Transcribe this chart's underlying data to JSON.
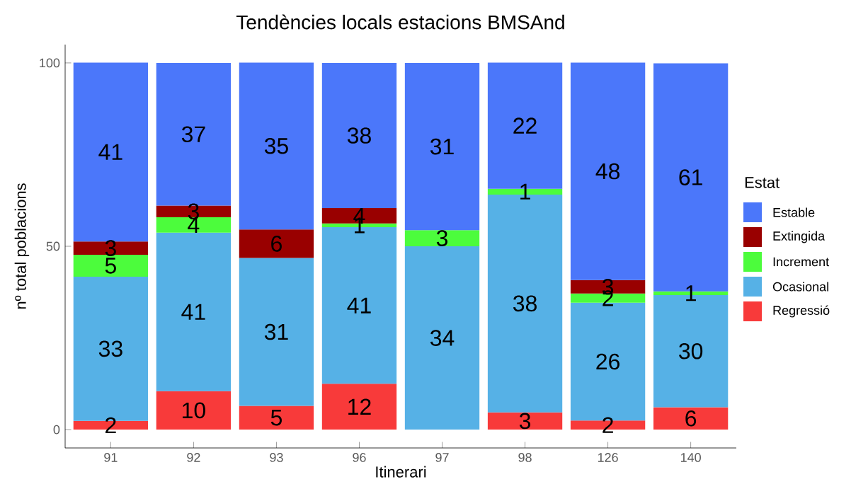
{
  "chart_data": {
    "type": "bar",
    "stacked": true,
    "title": "Tendències locals estacions BMSAnd",
    "xlabel": "Itinerari",
    "ylabel": "nº total poblacions",
    "legend_title": "Estat",
    "legend": "right",
    "grid": false,
    "categories": [
      "91",
      "92",
      "93",
      "96",
      "97",
      "98",
      "126",
      "140"
    ],
    "ylim": [
      -5,
      105
    ],
    "yticks": [
      0,
      50,
      100
    ],
    "series": [
      {
        "name": "Regressió",
        "color": "#f83a3a",
        "values": [
          2.4,
          10.5,
          6.5,
          12.5,
          null,
          4.7,
          2.5,
          6.1
        ]
      },
      {
        "name": "Ocasional",
        "color": "#56b1e6",
        "values": [
          39.3,
          43.2,
          40.3,
          42.7,
          50.0,
          59.4,
          32.1,
          30.6
        ]
      },
      {
        "name": "Increment",
        "color": "#4cfc3c",
        "values": [
          6.0,
          4.2,
          null,
          1.0,
          4.4,
          1.6,
          2.5,
          1.0
        ]
      },
      {
        "name": "Extingida",
        "color": "#990000",
        "values": [
          3.6,
          3.2,
          7.8,
          4.2,
          null,
          null,
          3.7,
          null
        ]
      },
      {
        "name": "Estable",
        "color": "#4b77fa",
        "values": [
          48.8,
          38.9,
          45.5,
          39.6,
          45.6,
          34.4,
          59.3,
          62.2
        ]
      }
    ],
    "annotations": [
      "2",
      "33",
      "5",
      "3",
      "41",
      "10",
      "41",
      "4",
      "3",
      "37",
      "5",
      "31",
      "6",
      "35",
      "12",
      "41",
      "1",
      "4",
      "38",
      "34",
      "3",
      "31",
      "3",
      "38",
      "1",
      "22",
      "2",
      "26",
      "2",
      "3",
      "48",
      "6",
      "30",
      "1",
      "61"
    ]
  }
}
